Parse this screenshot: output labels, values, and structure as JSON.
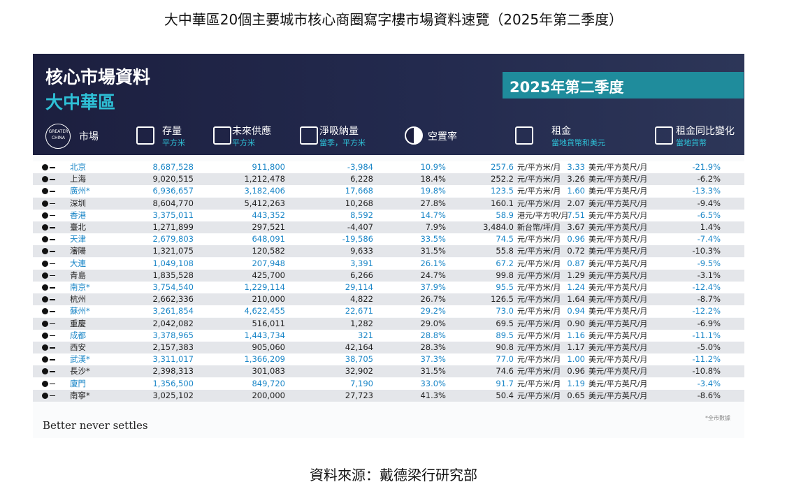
{
  "title": "大中華區20個主要城市核心商圈寫字樓市場資料速覽（2025年第二季度）",
  "panel": {
    "heading": "核心市場資料",
    "region": "大中華區",
    "quarter": "2025年第二季度",
    "logo": "GREATER CHINA",
    "columns": [
      {
        "name": "市場"
      },
      {
        "name": "存量",
        "unit": "平方米"
      },
      {
        "name": "未來供應",
        "unit": "平方米"
      },
      {
        "name": "淨吸納量",
        "unit": "當季，平方米"
      },
      {
        "name": "空置率"
      },
      {
        "name": "租金",
        "unit": "當地貨幣和美元"
      },
      {
        "name": "租金同比變化",
        "unit": "當地貨幣"
      }
    ],
    "rows": [
      [
        "北京",
        "8,687,528",
        "911,800",
        "-3,984",
        "10.9%",
        "257.6",
        "元/平方米/月",
        "3.33",
        "美元/平方英尺/月",
        "-21.9%"
      ],
      [
        "上海",
        "9,020,515",
        "1,212,478",
        "6,228",
        "18.4%",
        "252.2",
        "元/平方米/月",
        "3.26",
        "美元/平方英尺/月",
        "-6.2%"
      ],
      [
        "廣州*",
        "6,936,657",
        "3,182,406",
        "17,668",
        "19.8%",
        "123.5",
        "元/平方米/月",
        "1.60",
        "美元/平方英尺/月",
        "-13.3%"
      ],
      [
        "深圳",
        "8,604,770",
        "5,412,263",
        "10,268",
        "27.8%",
        "160.1",
        "元/平方米/月",
        "2.07",
        "美元/平方英尺/月",
        "-9.4%"
      ],
      [
        "香港",
        "3,375,011",
        "443,352",
        "8,592",
        "14.7%",
        "58.9",
        "港元/平方呎/月",
        "7.51",
        "美元/平方英尺/月",
        "-6.5%"
      ],
      [
        "臺北",
        "1,271,899",
        "297,521",
        "-4,407",
        "7.9%",
        "3,484.0",
        "新台幣/坪/月",
        "3.67",
        "美元/平方英尺/月",
        "1.4%"
      ],
      [
        "天津",
        "2,679,803",
        "648,091",
        "-19,586",
        "33.5%",
        "74.5",
        "元/平方米/月",
        "0.96",
        "美元/平方英尺/月",
        "-7.4%"
      ],
      [
        "瀋陽",
        "1,321,075",
        "120,582",
        "9,633",
        "31.5%",
        "55.8",
        "元/平方米/月",
        "0.72",
        "美元/平方英尺/月",
        "-10.3%"
      ],
      [
        "大連",
        "1,049,108",
        "207,948",
        "3,391",
        "26.1%",
        "67.2",
        "元/平方米/月",
        "0.87",
        "美元/平方英尺/月",
        "-9.5%"
      ],
      [
        "青島",
        "1,835,528",
        "425,700",
        "6,266",
        "24.7%",
        "99.8",
        "元/平方米/月",
        "1.29",
        "美元/平方英尺/月",
        "-3.1%"
      ],
      [
        "南京*",
        "3,754,540",
        "1,229,114",
        "29,114",
        "37.9%",
        "95.5",
        "元/平方米/月",
        "1.24",
        "美元/平方英尺/月",
        "-12.4%"
      ],
      [
        "杭州",
        "2,662,336",
        "210,000",
        "4,822",
        "26.7%",
        "126.5",
        "元/平方米/月",
        "1.64",
        "美元/平方英尺/月",
        "-8.7%"
      ],
      [
        "蘇州*",
        "3,261,854",
        "4,622,455",
        "22,671",
        "29.2%",
        "73.0",
        "元/平方米/月",
        "0.94",
        "美元/平方英尺/月",
        "-12.2%"
      ],
      [
        "重慶",
        "2,042,082",
        "516,011",
        "1,282",
        "29.0%",
        "69.5",
        "元/平方米/月",
        "0.90",
        "美元/平方英尺/月",
        "-6.9%"
      ],
      [
        "成都",
        "3,378,965",
        "1,443,734",
        "321",
        "28.8%",
        "89.5",
        "元/平方米/月",
        "1.16",
        "美元/平方英尺/月",
        "-11.1%"
      ],
      [
        "西安",
        "2,157,383",
        "905,060",
        "42,164",
        "28.3%",
        "90.8",
        "元/平方米/月",
        "1.17",
        "美元/平方英尺/月",
        "-5.0%"
      ],
      [
        "武漢*",
        "3,311,017",
        "1,366,209",
        "38,705",
        "37.3%",
        "77.0",
        "元/平方米/月",
        "1.00",
        "美元/平方英尺/月",
        "-11.2%"
      ],
      [
        "長沙*",
        "2,398,313",
        "301,083",
        "32,902",
        "31.5%",
        "74.6",
        "元/平方米/月",
        "0.96",
        "美元/平方英尺/月",
        "-10.8%"
      ],
      [
        "廈門",
        "1,356,500",
        "849,720",
        "7,190",
        "33.0%",
        "91.7",
        "元/平方米/月",
        "1.19",
        "美元/平方英尺/月",
        "-3.4%"
      ],
      [
        "南寧*",
        "3,025,102",
        "200,000",
        "27,723",
        "41.3%",
        "50.4",
        "元/平方米/月",
        "0.65",
        "美元/平方英尺/月",
        "-8.6%"
      ]
    ],
    "slogan": "Better never settles",
    "note": "*全市數據"
  },
  "source": "資料來源：戴德梁行研究部"
}
